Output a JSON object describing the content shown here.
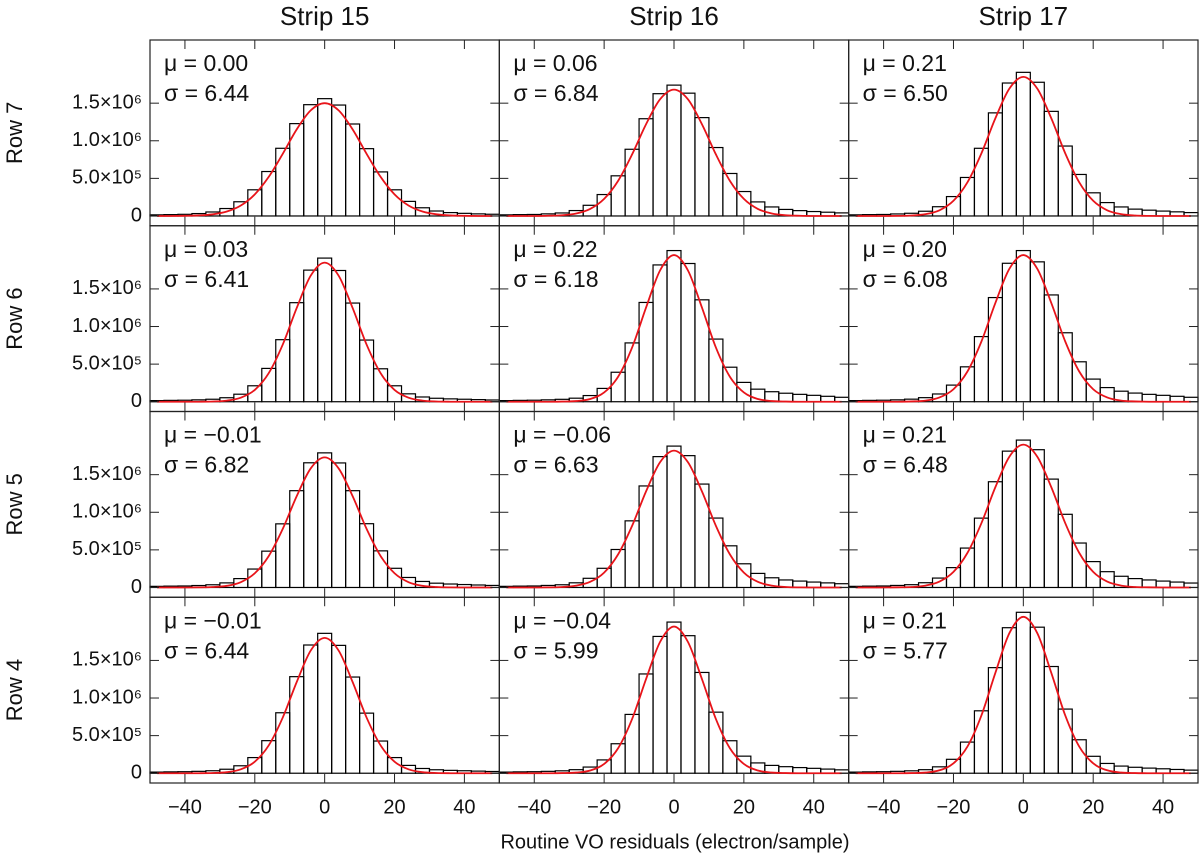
{
  "chart_data": {
    "type": "histogram-grid",
    "column_titles": [
      "Strip 15",
      "Strip 16",
      "Strip 17"
    ],
    "row_labels": [
      "Row 7",
      "Row 6",
      "Row 5",
      "Row 4"
    ],
    "xlabel": "Routine VO residuals (electron/sample)",
    "xlim": [
      -50,
      50
    ],
    "xticks": [
      {
        "value": -40,
        "label": "−40"
      },
      {
        "value": -20,
        "label": "−20"
      },
      0,
      20,
      40
    ],
    "ylim": [
      -130000,
      2340000
    ],
    "yticks": [
      0,
      {
        "value": 500000,
        "label": "5.0×10⁵"
      },
      {
        "value": 1000000,
        "label": "1.0×10⁶"
      },
      {
        "value": 1500000,
        "label": "1.5×10⁶"
      }
    ],
    "hist_color": "#000000",
    "fit_color": "#e8141a",
    "bins": [
      -50,
      -46,
      -42,
      -38,
      -34,
      -30,
      -26,
      -22,
      -18,
      -14,
      -10,
      -6,
      -2,
      2,
      6,
      10,
      14,
      18,
      22,
      26,
      30,
      34,
      38,
      42,
      46,
      50
    ],
    "fit_x": [
      -48,
      -44,
      -40,
      -36,
      -32,
      -28,
      -24,
      -20,
      -16,
      -12,
      -8,
      -4,
      0,
      4,
      8,
      12,
      16,
      20,
      24,
      28,
      32,
      36,
      40,
      44,
      48
    ],
    "panels": [
      {
        "annotations": [
          "μ = 0.00",
          "σ = 6.44"
        ],
        "counts": [
          15000,
          18000,
          22000,
          32000,
          53000,
          99000,
          189000,
          348000,
          591000,
          900000,
          1228000,
          1480000,
          1560000,
          1475000,
          1223000,
          895000,
          586000,
          348000,
          194000,
          109000,
          66000,
          45000,
          35000,
          28000,
          23000
        ],
        "fit": [
          0,
          0,
          2000,
          7000,
          22000,
          59000,
          139000,
          287000,
          521000,
          827000,
          1152000,
          1404000,
          1500000,
          1404000,
          1152000,
          827000,
          521000,
          287000,
          139000,
          59000,
          22000,
          7000,
          2000,
          0,
          0
        ]
      },
      {
        "annotations": [
          "μ = 0.06",
          "σ = 6.84"
        ],
        "counts": [
          15000,
          18000,
          20000,
          28000,
          40000,
          72000,
          142000,
          285000,
          534000,
          887000,
          1293000,
          1626000,
          1740000,
          1633000,
          1308000,
          910000,
          565000,
          325000,
          187000,
          120000,
          87000,
          71000,
          59000,
          50000,
          41000
        ],
        "fit": [
          0,
          0,
          0,
          3000,
          10000,
          33000,
          94000,
          227000,
          467000,
          818000,
          1220000,
          1551000,
          1680000,
          1551000,
          1220000,
          818000,
          467000,
          227000,
          94000,
          33000,
          10000,
          3000,
          0,
          0,
          0
        ]
      },
      {
        "annotations": [
          "μ = 0.21",
          "σ = 6.50"
        ],
        "counts": [
          15000,
          18000,
          20000,
          27000,
          36000,
          63000,
          123000,
          258000,
          512000,
          900000,
          1371000,
          1768000,
          1910000,
          1778000,
          1391000,
          930000,
          552000,
          308000,
          178000,
          120000,
          91000,
          77000,
          65000,
          55000,
          45000
        ],
        "fit": [
          0,
          0,
          0,
          1000,
          6000,
          24000,
          76000,
          202000,
          448000,
          833000,
          1299000,
          1693000,
          1850000,
          1693000,
          1299000,
          833000,
          448000,
          202000,
          76000,
          24000,
          6000,
          1000,
          0,
          0,
          0
        ]
      },
      {
        "annotations": [
          "μ = 0.03",
          "σ = 6.41"
        ],
        "counts": [
          15000,
          18000,
          20000,
          25000,
          33000,
          53000,
          100000,
          212000,
          443000,
          825000,
          1317000,
          1750000,
          1910000,
          1745000,
          1312000,
          820000,
          438000,
          212000,
          105000,
          63000,
          46000,
          38000,
          33000,
          28000,
          23000
        ],
        "fit": [
          0,
          0,
          0,
          0,
          3000,
          15000,
          54000,
          157000,
          381000,
          760000,
          1247000,
          1676000,
          1850000,
          1676000,
          1247000,
          760000,
          381000,
          157000,
          54000,
          15000,
          3000,
          0,
          0,
          0,
          0
        ]
      },
      {
        "annotations": [
          "μ = 0.22",
          "σ = 6.18"
        ],
        "counts": [
          15000,
          18000,
          20000,
          25000,
          32000,
          47000,
          82000,
          177000,
          392000,
          782000,
          1320000,
          1819000,
          2010000,
          1838000,
          1355000,
          833000,
          459000,
          257000,
          167000,
          133000,
          113000,
          98000,
          85000,
          72000,
          59000
        ],
        "fit": [
          0,
          0,
          0,
          0,
          2000,
          9000,
          36000,
          123000,
          332000,
          720000,
          1252000,
          1745000,
          1950000,
          1745000,
          1252000,
          720000,
          332000,
          123000,
          36000,
          9000,
          2000,
          0,
          0,
          0,
          0
        ]
      },
      {
        "annotations": [
          "μ = 0.20",
          "σ = 6.08"
        ],
        "counts": [
          15000,
          18000,
          20000,
          25000,
          34000,
          54000,
          103000,
          221000,
          464000,
          866000,
          1385000,
          1841000,
          2010000,
          1860000,
          1420000,
          917000,
          531000,
          301000,
          188000,
          140000,
          115000,
          98000,
          85000,
          72000,
          59000
        ],
        "fit": [
          0,
          0,
          0,
          0,
          4000,
          15000,
          57000,
          166000,
          402000,
          801000,
          1314000,
          1767000,
          1950000,
          1767000,
          1314000,
          801000,
          402000,
          166000,
          57000,
          15000,
          4000,
          0,
          0,
          0,
          0
        ]
      },
      {
        "annotations": [
          "μ = −0.01",
          "σ = 6.82"
        ],
        "counts": [
          15000,
          18000,
          20000,
          26000,
          36000,
          61000,
          118000,
          245000,
          483000,
          846000,
          1287000,
          1658000,
          1790000,
          1656000,
          1287000,
          848000,
          487000,
          255000,
          133000,
          80000,
          57000,
          46000,
          39000,
          33000,
          27000
        ],
        "fit": [
          0,
          0,
          0,
          1000,
          6000,
          22000,
          71000,
          189000,
          419000,
          779000,
          1214000,
          1583000,
          1730000,
          1583000,
          1214000,
          779000,
          419000,
          189000,
          71000,
          22000,
          6000,
          1000,
          0,
          0,
          0
        ]
      },
      {
        "annotations": [
          "μ = −0.06",
          "σ = 6.63"
        ],
        "counts": [
          15000,
          18000,
          20000,
          27000,
          36000,
          62000,
          122000,
          255000,
          505000,
          886000,
          1350000,
          1740000,
          1880000,
          1753000,
          1375000,
          923000,
          554000,
          315000,
          187000,
          129000,
          100000,
          85000,
          72000,
          61000,
          50000
        ],
        "fit": [
          0,
          0,
          0,
          1000,
          6000,
          24000,
          75000,
          198000,
          440000,
          819000,
          1278000,
          1665000,
          1820000,
          1665000,
          1278000,
          819000,
          440000,
          198000,
          75000,
          24000,
          6000,
          1000,
          0,
          0,
          0
        ]
      },
      {
        "annotations": [
          "μ = 0.21",
          "σ = 6.48"
        ],
        "counts": [
          15000,
          18000,
          20000,
          27000,
          37000,
          63000,
          125000,
          264000,
          524000,
          922000,
          1406000,
          1813000,
          1960000,
          1832000,
          1441000,
          973000,
          591000,
          344000,
          210000,
          149000,
          118000,
          100000,
          85000,
          72000,
          59000
        ],
        "fit": [
          0,
          0,
          0,
          2000,
          6000,
          25000,
          78000,
          207000,
          460000,
          855000,
          1334000,
          1739000,
          1900000,
          1739000,
          1334000,
          855000,
          460000,
          207000,
          78000,
          25000,
          6000,
          2000,
          0,
          0,
          0
        ]
      },
      {
        "annotations": [
          "μ = −0.01",
          "σ = 6.44"
        ],
        "counts": [
          15000,
          18000,
          20000,
          25000,
          33000,
          53000,
          99000,
          208000,
          433000,
          804000,
          1284000,
          1705000,
          1860000,
          1700000,
          1279000,
          799000,
          428000,
          208000,
          104000,
          63000,
          46000,
          38000,
          33000,
          28000,
          23000
        ],
        "fit": [
          0,
          0,
          0,
          0,
          3000,
          14000,
          52000,
          153000,
          371000,
          740000,
          1213000,
          1631000,
          1800000,
          1631000,
          1213000,
          740000,
          371000,
          153000,
          52000,
          14000,
          3000,
          0,
          0,
          0,
          0
        ]
      },
      {
        "annotations": [
          "μ = −0.04",
          "σ = 5.99"
        ],
        "counts": [
          15000,
          18000,
          20000,
          25000,
          32000,
          47000,
          82000,
          177000,
          392000,
          782000,
          1320000,
          1819000,
          2010000,
          1829000,
          1340000,
          812000,
          432000,
          227000,
          137000,
          104000,
          87000,
          75000,
          65000,
          55000,
          45000
        ],
        "fit": [
          0,
          0,
          0,
          0,
          2000,
          9000,
          36000,
          123000,
          332000,
          720000,
          1252000,
          1745000,
          1950000,
          1745000,
          1252000,
          720000,
          332000,
          123000,
          36000,
          9000,
          2000,
          0,
          0,
          0,
          0
        ]
      },
      {
        "annotations": [
          "μ = 0.21",
          "σ = 5.77"
        ],
        "counts": [
          15000,
          18000,
          20000,
          25000,
          32000,
          47000,
          85000,
          185000,
          414000,
          830000,
          1404000,
          1935000,
          2140000,
          1942000,
          1419000,
          853000,
          445000,
          225000,
          130000,
          95000,
          79000,
          68000,
          59000,
          50000,
          41000
        ],
        "fit": [
          0,
          0,
          0,
          0,
          2000,
          9000,
          39000,
          131000,
          354000,
          768000,
          1335000,
          1862000,
          2080000,
          1862000,
          1335000,
          768000,
          354000,
          131000,
          39000,
          9000,
          2000,
          0,
          0,
          0,
          0
        ]
      }
    ]
  }
}
